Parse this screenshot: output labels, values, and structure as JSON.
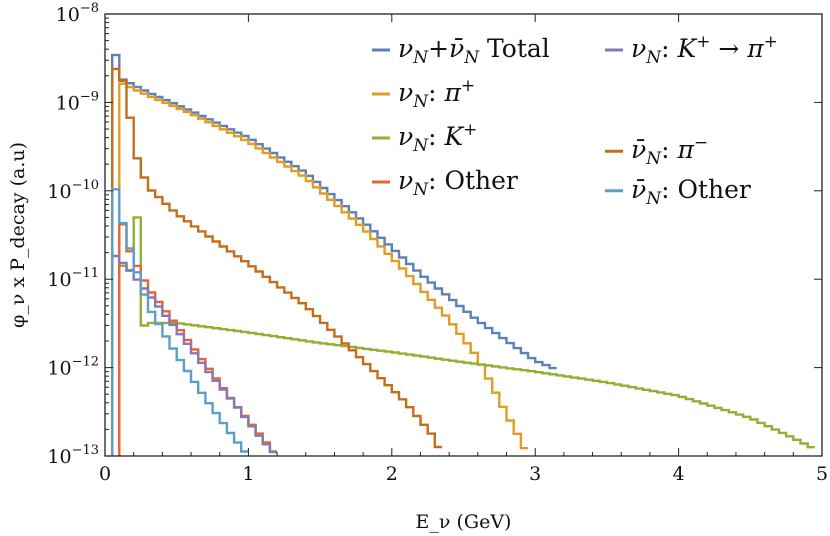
{
  "chart_data": {
    "type": "line",
    "step": true,
    "title": "",
    "xlabel": "E_ν (GeV)",
    "ylabel": "φ_ν x P_decay  (a.u)",
    "xlim": [
      0,
      5
    ],
    "ylim": [
      1e-13,
      1e-08
    ],
    "yscale": "log",
    "x_ticks": [
      0,
      1,
      2,
      3,
      4,
      5
    ],
    "x_tick_labels": [
      "0",
      "1",
      "2",
      "3",
      "4",
      "5"
    ],
    "y_ticks": [
      1e-13,
      1e-12,
      1e-11,
      1e-10,
      1e-09,
      1e-08
    ],
    "y_tick_labels": [
      {
        "base": "10",
        "exp": "−13"
      },
      {
        "base": "10",
        "exp": "−12"
      },
      {
        "base": "10",
        "exp": "−11"
      },
      {
        "base": "10",
        "exp": "−10"
      },
      {
        "base": "10",
        "exp": "−9"
      },
      {
        "base": "10",
        "exp": "−8"
      }
    ],
    "grid": false,
    "legend_position": "top-right",
    "series": [
      {
        "name": "νN+ν̄N Total",
        "legend": [
          {
            "t": "ν",
            "i": true
          },
          {
            "t": "N",
            "sub": true,
            "i": true
          },
          {
            "t": "+"
          },
          {
            "t": "ν̄",
            "i": true
          },
          {
            "t": "N",
            "sub": true,
            "i": true
          },
          {
            "t": " Total"
          }
        ],
        "color": "#5e81b5",
        "points": [
          [
            0.05,
            6.2e-09
          ],
          [
            0.1,
            1.9e-09
          ],
          [
            0.3,
            1.3e-09
          ],
          [
            0.6,
            8e-10
          ],
          [
            1.0,
            4e-10
          ],
          [
            1.4,
            1.6e-10
          ],
          [
            1.8,
            4.5e-11
          ],
          [
            2.2,
            1.15e-11
          ],
          [
            2.6,
            3.4e-12
          ],
          [
            3.0,
            1.2e-12
          ],
          [
            3.15,
            9.5e-13
          ]
        ]
      },
      {
        "name": "νN: π+",
        "legend": [
          {
            "t": "ν",
            "i": true
          },
          {
            "t": "N",
            "sub": true,
            "i": true
          },
          {
            "t": ": "
          },
          {
            "t": "π",
            "i": true
          },
          {
            "t": "+",
            "sup": true
          }
        ],
        "color": "#e19c24",
        "points": [
          [
            0.1,
            1.7e-09
          ],
          [
            0.3,
            1.2e-09
          ],
          [
            0.6,
            7.5e-10
          ],
          [
            1.0,
            3.6e-10
          ],
          [
            1.4,
            1.4e-10
          ],
          [
            1.8,
            3.8e-11
          ],
          [
            2.1,
            1.2e-11
          ],
          [
            2.4,
            3.5e-12
          ],
          [
            2.6,
            1.3e-12
          ],
          [
            2.8,
            3e-13
          ],
          [
            2.9,
            1.5e-13
          ],
          [
            2.95,
            1e-13
          ]
        ]
      },
      {
        "name": "νN: K+",
        "legend": [
          {
            "t": "ν",
            "i": true
          },
          {
            "t": "N",
            "sub": true,
            "i": true
          },
          {
            "t": ": "
          },
          {
            "t": "K",
            "i": true
          },
          {
            "t": "+",
            "sup": true
          }
        ],
        "color": "#8fb032",
        "points": [
          [
            0.1,
            1.5e-11
          ],
          [
            0.2,
            1.2e-11
          ],
          [
            0.2,
            5e-11
          ],
          [
            0.25,
            5e-11
          ],
          [
            0.25,
            2.8e-12
          ],
          [
            0.3,
            3.2e-12
          ],
          [
            0.5,
            3.2e-12
          ],
          [
            1.0,
            2.5e-12
          ],
          [
            1.5,
            1.9e-12
          ],
          [
            2.0,
            1.5e-12
          ],
          [
            2.5,
            1.15e-12
          ],
          [
            3.0,
            9e-13
          ],
          [
            3.5,
            6.8e-13
          ],
          [
            4.0,
            4.8e-13
          ],
          [
            4.5,
            2.7e-13
          ],
          [
            4.8,
            1.6e-13
          ],
          [
            4.95,
            1.2e-13
          ]
        ]
      },
      {
        "name": "νN: Other",
        "legend": [
          {
            "t": "ν",
            "i": true
          },
          {
            "t": "N",
            "sub": true,
            "i": true
          },
          {
            "t": ": Other"
          }
        ],
        "color": "#eb6235",
        "points": [
          [
            0.1,
            7e-11
          ],
          [
            0.15,
            2.5e-11
          ],
          [
            0.3,
            8e-12
          ],
          [
            0.5,
            3e-12
          ],
          [
            0.7,
            1.1e-12
          ],
          [
            0.9,
            4e-13
          ],
          [
            1.1,
            1.6e-13
          ],
          [
            1.2,
            1e-13
          ]
        ]
      },
      {
        "name": "νN: K+ → π+",
        "legend": [
          {
            "t": "ν",
            "i": true
          },
          {
            "t": "N",
            "sub": true,
            "i": true
          },
          {
            "t": ": "
          },
          {
            "t": "K",
            "i": true
          },
          {
            "t": "+",
            "sup": true
          },
          {
            "t": " → "
          },
          {
            "t": "π",
            "i": true
          },
          {
            "t": "+",
            "sup": true
          }
        ],
        "color": "#8778b3",
        "points": [
          [
            0.05,
            2e-11
          ],
          [
            0.15,
            1.4e-11
          ],
          [
            0.3,
            7e-12
          ],
          [
            0.5,
            2.7e-12
          ],
          [
            0.7,
            1e-12
          ],
          [
            0.9,
            4e-13
          ],
          [
            1.1,
            1.5e-13
          ],
          [
            1.2,
            1e-13
          ]
        ]
      },
      {
        "name": "ν̄N: π−",
        "legend": [
          {
            "t": "ν̄",
            "i": true
          },
          {
            "t": "N",
            "sub": true,
            "i": true
          },
          {
            "t": ": "
          },
          {
            "t": "π",
            "i": true
          },
          {
            "t": "−",
            "sup": true
          }
        ],
        "color": "#c56e1a",
        "points": [
          [
            0.05,
            2.8e-09
          ],
          [
            0.15,
            1.5e-09
          ],
          [
            0.2,
            3e-10
          ],
          [
            0.3,
            1.1e-10
          ],
          [
            0.5,
            5.5e-11
          ],
          [
            0.8,
            2.5e-11
          ],
          [
            1.0,
            1.5e-11
          ],
          [
            1.4,
            5e-12
          ],
          [
            1.8,
            1.2e-12
          ],
          [
            2.1,
            4e-13
          ],
          [
            2.3,
            1.6e-13
          ],
          [
            2.35,
            1e-13
          ]
        ]
      },
      {
        "name": "ν̄N: Other",
        "legend": [
          {
            "t": "ν̄",
            "i": true
          },
          {
            "t": "N",
            "sub": true,
            "i": true
          },
          {
            "t": ": Other"
          }
        ],
        "color": "#5d9ec7",
        "points": [
          [
            0.05,
            1.8e-10
          ],
          [
            0.1,
            6e-11
          ],
          [
            0.2,
            1.6e-11
          ],
          [
            0.3,
            5e-12
          ],
          [
            0.5,
            1.4e-12
          ],
          [
            0.7,
            4.5e-13
          ],
          [
            0.9,
            1.6e-13
          ],
          [
            1.0,
            1e-13
          ]
        ]
      }
    ],
    "legend_layout": [
      {
        "series": 0,
        "col": 0,
        "row": 0
      },
      {
        "series": 1,
        "col": 0,
        "row": 1
      },
      {
        "series": 2,
        "col": 0,
        "row": 2
      },
      {
        "series": 3,
        "col": 0,
        "row": 3
      },
      {
        "series": 4,
        "col": 1,
        "row": 0
      },
      {
        "series": 5,
        "col": 1,
        "row": 2.3
      },
      {
        "series": 6,
        "col": 1,
        "row": 3.2
      }
    ]
  }
}
